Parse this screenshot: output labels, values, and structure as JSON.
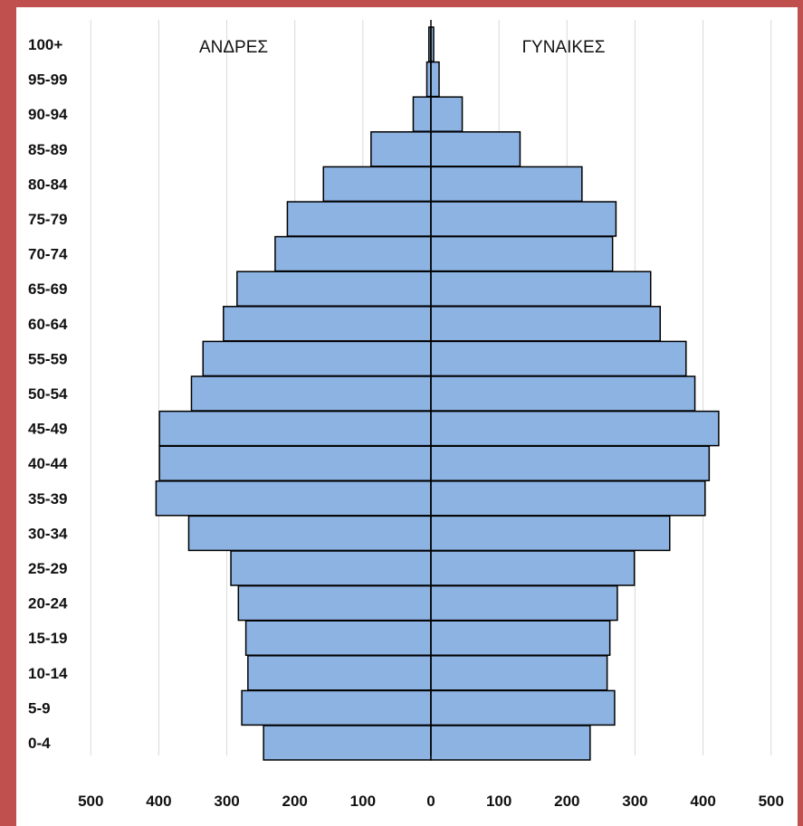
{
  "chart_data": {
    "type": "bar",
    "orientation": "horizontal",
    "subtype": "population-pyramid",
    "categories": [
      "0-4",
      "5-9",
      "10-14",
      "15-19",
      "20-24",
      "25-29",
      "30-34",
      "35-39",
      "40-44",
      "45-49",
      "50-54",
      "55-59",
      "60-64",
      "65-69",
      "70-74",
      "75-79",
      "80-84",
      "85-89",
      "90-94",
      "95-99",
      "100+"
    ],
    "series": [
      {
        "name": "ΑΝΔΡΕΣ",
        "side": "left",
        "values": [
          246,
          278,
          269,
          272,
          283,
          294,
          356,
          404,
          399,
          399,
          352,
          335,
          305,
          285,
          229,
          211,
          158,
          88,
          26,
          6,
          3
        ]
      },
      {
        "name": "ΓΥΝΑΙΚΕΣ",
        "side": "right",
        "values": [
          234,
          270,
          259,
          263,
          274,
          299,
          351,
          403,
          409,
          423,
          388,
          375,
          337,
          323,
          267,
          272,
          222,
          131,
          46,
          12,
          4
        ]
      }
    ],
    "xlim": [
      -500,
      500
    ],
    "xticks": [
      "500",
      "400",
      "300",
      "200",
      "100",
      "0",
      "100",
      "200",
      "300",
      "400",
      "500"
    ],
    "grid": true,
    "colors": {
      "bar": "#8db3e2",
      "bar_edge": "#000000",
      "grid": "#d9d9d9",
      "frame": "#c0504d"
    }
  }
}
